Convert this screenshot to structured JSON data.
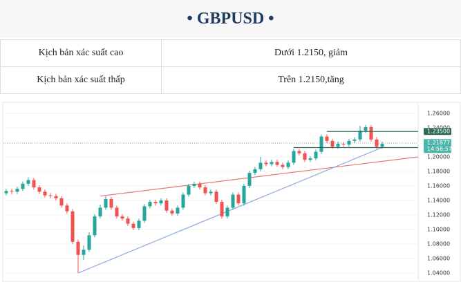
{
  "header": {
    "title": "• GBPUSD •"
  },
  "table": {
    "rows": [
      [
        "Kịch bản xác suất cao",
        "Dưới 1.2150, giảm"
      ],
      [
        "Kịch bản xác suất thấp",
        "Trên 1.2150,tăng"
      ]
    ]
  },
  "chart_data": {
    "type": "candlestick",
    "up_color": "#26a69a",
    "down_color": "#ef5350",
    "open": [
      1.15,
      1.153,
      1.152,
      1.156,
      1.163,
      1.168,
      1.158,
      1.152,
      1.147,
      1.146,
      1.143,
      1.133,
      1.125,
      1.083,
      1.065,
      1.072,
      1.092,
      1.118,
      1.13,
      1.142,
      1.13,
      1.118,
      1.115,
      1.108,
      1.102,
      1.112,
      1.132,
      1.138,
      1.136,
      1.14,
      1.126,
      1.122,
      1.13,
      1.148,
      1.16,
      1.163,
      1.158,
      1.15,
      1.152,
      1.138,
      1.118,
      1.13,
      1.148,
      1.136,
      1.16,
      1.178,
      1.183,
      1.192,
      1.19,
      1.193,
      1.189,
      1.186,
      1.192,
      1.208,
      1.205,
      1.196,
      1.198,
      1.207,
      1.228,
      1.222,
      1.214,
      1.218,
      1.217,
      1.222,
      1.224,
      1.236,
      1.241,
      1.224,
      1.214
    ],
    "high": [
      1.156,
      1.156,
      1.159,
      1.166,
      1.172,
      1.171,
      1.161,
      1.155,
      1.15,
      1.149,
      1.146,
      1.136,
      1.128,
      1.086,
      1.078,
      1.096,
      1.121,
      1.134,
      1.146,
      1.145,
      1.133,
      1.121,
      1.118,
      1.111,
      1.115,
      1.135,
      1.141,
      1.141,
      1.143,
      1.143,
      1.129,
      1.133,
      1.151,
      1.163,
      1.166,
      1.166,
      1.161,
      1.155,
      1.155,
      1.141,
      1.133,
      1.151,
      1.151,
      1.163,
      1.181,
      1.186,
      1.2,
      1.195,
      1.196,
      1.196,
      1.192,
      1.195,
      1.211,
      1.211,
      1.208,
      1.201,
      1.21,
      1.231,
      1.231,
      1.225,
      1.221,
      1.22,
      1.225,
      1.227,
      1.243,
      1.244,
      1.244,
      1.227,
      1.221
    ],
    "low": [
      1.147,
      1.149,
      1.149,
      1.153,
      1.16,
      1.155,
      1.149,
      1.144,
      1.143,
      1.14,
      1.13,
      1.122,
      1.08,
      1.04,
      1.058,
      1.069,
      1.089,
      1.115,
      1.127,
      1.127,
      1.115,
      1.112,
      1.105,
      1.099,
      1.099,
      1.109,
      1.129,
      1.133,
      1.133,
      1.123,
      1.119,
      1.119,
      1.127,
      1.145,
      1.157,
      1.155,
      1.147,
      1.147,
      1.135,
      1.115,
      1.115,
      1.127,
      1.133,
      1.133,
      1.157,
      1.175,
      1.18,
      1.187,
      1.187,
      1.186,
      1.183,
      1.183,
      1.189,
      1.202,
      1.193,
      1.193,
      1.195,
      1.204,
      1.219,
      1.211,
      1.211,
      1.214,
      1.214,
      1.219,
      1.221,
      1.233,
      1.221,
      1.211,
      1.211
    ],
    "close": [
      1.153,
      1.152,
      1.156,
      1.163,
      1.168,
      1.158,
      1.152,
      1.147,
      1.146,
      1.143,
      1.133,
      1.125,
      1.083,
      1.065,
      1.072,
      1.092,
      1.118,
      1.13,
      1.142,
      1.13,
      1.118,
      1.115,
      1.108,
      1.102,
      1.112,
      1.132,
      1.138,
      1.136,
      1.14,
      1.126,
      1.122,
      1.13,
      1.148,
      1.16,
      1.163,
      1.158,
      1.15,
      1.152,
      1.138,
      1.118,
      1.13,
      1.148,
      1.136,
      1.16,
      1.178,
      1.183,
      1.192,
      1.19,
      1.193,
      1.189,
      1.186,
      1.192,
      1.208,
      1.205,
      1.196,
      1.198,
      1.207,
      1.228,
      1.222,
      1.214,
      1.218,
      1.217,
      1.222,
      1.224,
      1.236,
      1.241,
      1.224,
      1.214,
      1.218
    ],
    "xlim": [
      -0.5,
      74.5
    ],
    "ylim": [
      1.0305,
      1.2733
    ],
    "yticks": [
      {
        "value": 1.26,
        "label": "1.26000"
      },
      {
        "value": 1.24,
        "label": "1.24000"
      },
      {
        "value": 1.22,
        "label": "1.22000"
      },
      {
        "value": 1.2,
        "label": "1.20000"
      },
      {
        "value": 1.18,
        "label": "1.18000"
      },
      {
        "value": 1.16,
        "label": "1.16000"
      },
      {
        "value": 1.14,
        "label": "1.14000"
      },
      {
        "value": 1.12,
        "label": "1.12000"
      },
      {
        "value": 1.1,
        "label": "1.10000"
      },
      {
        "value": 1.08,
        "label": "1.08000"
      },
      {
        "value": 1.06,
        "label": "1.06000"
      },
      {
        "value": 1.04,
        "label": "1.04000"
      }
    ],
    "grid": true,
    "trendlines": [
      {
        "color": "#e57373",
        "x": [
          17,
          74.5
        ],
        "y": [
          1.146,
          1.2
        ]
      },
      {
        "color": "#8fa8e0",
        "x": [
          13,
          68
        ],
        "y": [
          1.04,
          1.213
        ]
      }
    ],
    "levels": [
      {
        "color": "#2e6b57",
        "start": 58,
        "value": 1.235,
        "label": "1.23500"
      },
      {
        "color": "#2e6b57",
        "start": 52,
        "value": 1.21284,
        "label": "1.21284"
      }
    ],
    "current": {
      "color": "#4db6ac",
      "value": 1.21877,
      "label": "1.21877",
      "time": "14:58:57"
    }
  }
}
